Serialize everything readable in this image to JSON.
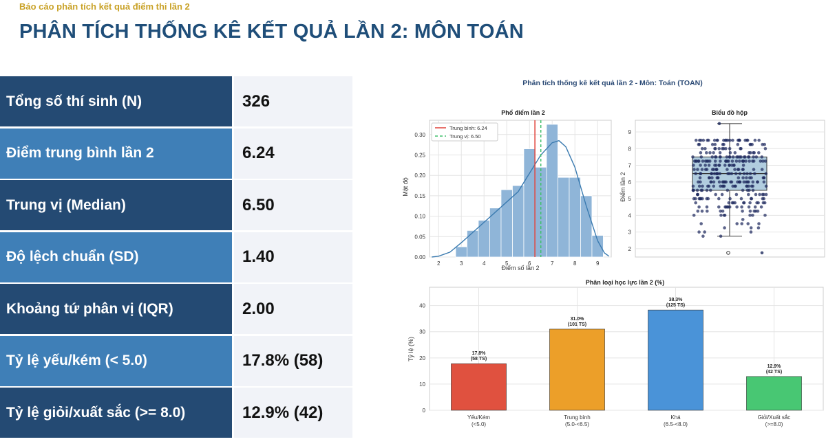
{
  "header": {
    "subtitle": "Báo cáo phân tích kết quả điểm thi lần 2",
    "title": "PHÂN TÍCH THỐNG KÊ KẾT QUẢ LẦN 2: MÔN TOÁN"
  },
  "stats": [
    {
      "label": "Tổng số thí sinh (N)",
      "value": "326"
    },
    {
      "label": "Điểm trung bình lần 2",
      "value": "6.24"
    },
    {
      "label": "Trung vị (Median)",
      "value": "6.50"
    },
    {
      "label": "Độ lệch chuẩn (SD)",
      "value": "1.40"
    },
    {
      "label": "Khoảng tứ phân vị (IQR)",
      "value": "2.00"
    },
    {
      "label": "Tỷ lệ yếu/kém (< 5.0)",
      "value": "17.8% (58)"
    },
    {
      "label": "Tỷ lệ giỏi/xuất sắc (>= 8.0)",
      "value": "12.9% (42)"
    }
  ],
  "figure_title": "Phân tích thống kê kết quả lần 2 - Môn: Toán (TOAN)",
  "colors": {
    "hist_bar": "#8fb5d8",
    "kde": "#3b7bb0",
    "mean_line": "#e0433b",
    "median_line": "#3fbf6a",
    "scatter_point": "#1e2a5e",
    "box_fill": "#a9c8dc",
    "cat_weak": "#e0513f",
    "cat_avg": "#ec9f29",
    "cat_good": "#4a93d8",
    "cat_excellent": "#48c773"
  },
  "chart_data": [
    {
      "type": "bar",
      "title": "Phổ điểm lần 2",
      "xlabel": "Điểm số lần 2",
      "ylabel": "Mật độ",
      "bin_edges": [
        2.75,
        3.25,
        3.75,
        4.25,
        4.75,
        5.25,
        5.75,
        6.25,
        6.75,
        7.25,
        7.75,
        8.25,
        8.75,
        9.25
      ],
      "density": [
        0.025,
        0.065,
        0.09,
        0.12,
        0.165,
        0.175,
        0.265,
        0.22,
        0.325,
        0.195,
        0.195,
        0.15,
        0.053
      ],
      "kde": {
        "x": [
          1.7,
          2.0,
          2.5,
          3.0,
          3.5,
          4.0,
          4.5,
          5.0,
          5.5,
          6.0,
          6.5,
          7.0,
          7.3,
          7.6,
          8.0,
          8.5,
          9.0,
          9.3,
          9.5
        ],
        "y": [
          0.0,
          0.002,
          0.012,
          0.035,
          0.06,
          0.085,
          0.11,
          0.135,
          0.16,
          0.205,
          0.25,
          0.28,
          0.285,
          0.27,
          0.22,
          0.125,
          0.04,
          0.01,
          0.002
        ]
      },
      "mean": 6.24,
      "median": 6.5,
      "legend": [
        "Trung bình: 6.24",
        "Trung vị: 6.50"
      ],
      "xlim": [
        1.6,
        9.6
      ],
      "ylim": [
        0,
        0.335
      ],
      "xticks": [
        2,
        3,
        4,
        5,
        6,
        7,
        8,
        9
      ],
      "yticks": [
        0.0,
        0.05,
        0.1,
        0.15,
        0.2,
        0.25,
        0.3
      ],
      "ytick_labels": [
        "0.00",
        "0.05",
        "0.10",
        "0.15",
        "0.20",
        "0.25",
        "0.30"
      ],
      "grid": true,
      "legend_position": "top-left"
    },
    {
      "type": "scatter",
      "title": "Biểu đồ hộp",
      "ylabel": "Điểm lần 2",
      "box": {
        "min": 2.75,
        "q1": 5.5,
        "median": 6.5,
        "q3": 7.5,
        "max": 9.5
      },
      "outliers": [
        1.75,
        1.75
      ],
      "ylim": [
        1.5,
        9.7
      ],
      "yticks": [
        2,
        3,
        4,
        5,
        6,
        7,
        8,
        9
      ],
      "grid": true
    },
    {
      "type": "bar",
      "title": "Phân loại học lực lần 2 (%)",
      "ylabel": "Tỷ lệ (%)",
      "categories": [
        "Yếu/Kém",
        "Trung bình",
        "Khá",
        "Giỏi/Xuất sắc"
      ],
      "ranges": [
        "(<5.0)",
        "(5.0-<6.5)",
        "(6.5-<8.0)",
        "(>=8.0)"
      ],
      "values": [
        17.8,
        31.0,
        38.3,
        12.9
      ],
      "value_labels": [
        "17.8%",
        "31.0%",
        "38.3%",
        "12.9%"
      ],
      "count_labels": [
        "(58 TS)",
        "(101 TS)",
        "(125 TS)",
        "(42 TS)"
      ],
      "ylim": [
        0,
        47
      ],
      "yticks": [
        0,
        10,
        20,
        30,
        40
      ],
      "grid": true
    }
  ]
}
